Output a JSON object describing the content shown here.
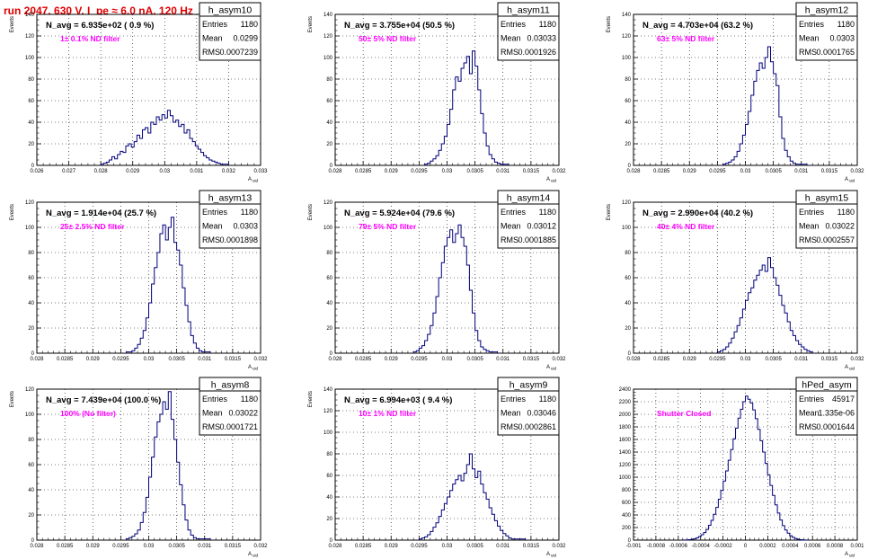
{
  "run_title": "run 2047,   630 V, I_pe ≈ 6.0 nA, 120 Hz",
  "colors": {
    "histogram": "#00007a",
    "annotation": "#ff00ff",
    "title": "#e00000",
    "frame": "#000000",
    "grid": "#000000"
  },
  "chart_data": [
    {
      "type": "histogram",
      "name": "h_asym10",
      "title": "",
      "xlabel": "A_uid",
      "ylabel": "Events",
      "xlim": [
        0.026,
        0.033
      ],
      "ylim": [
        0,
        140
      ],
      "xticks": [
        "0.026",
        "0.027",
        "0.028",
        "0.029",
        "0.03",
        "0.031",
        "0.032",
        "0.033"
      ],
      "yticks": [
        "0",
        "20",
        "40",
        "60",
        "80",
        "100",
        "120",
        "140"
      ],
      "grid": true,
      "navg_text": "N_avg = 6.935e+02 ( 0.9 %)",
      "filter_text": "1± 0.1% ND filter",
      "stats": {
        "entries": "1180",
        "mean": "0.0299",
        "rms": "0.0007239"
      },
      "hist": {
        "x0": 0.028,
        "x1": 0.032,
        "values": [
          1,
          2,
          3,
          5,
          8,
          6,
          10,
          13,
          12,
          18,
          20,
          17,
          22,
          28,
          25,
          33,
          35,
          30,
          40,
          38,
          45,
          42,
          47,
          44,
          51,
          46,
          40,
          42,
          36,
          38,
          30,
          33,
          25,
          22,
          18,
          15,
          12,
          9,
          7,
          5,
          4,
          3,
          2,
          1,
          1,
          1
        ]
      }
    },
    {
      "type": "histogram",
      "name": "h_asym11",
      "title": "",
      "xlabel": "A_uid",
      "ylabel": "Events",
      "xlim": [
        0.028,
        0.032
      ],
      "ylim": [
        0,
        140
      ],
      "xticks": [
        "0.028",
        "0.0285",
        "0.029",
        "0.0295",
        "0.03",
        "0.0305",
        "0.031",
        "0.0315",
        "0.032"
      ],
      "yticks": [
        "0",
        "20",
        "40",
        "60",
        "80",
        "100",
        "120",
        "140"
      ],
      "grid": true,
      "navg_text": "N_avg = 3.755e+04 (50.5 %)",
      "filter_text": "50± 5% ND filter",
      "stats": {
        "entries": "1180",
        "mean": "0.03033",
        "rms": "0.0001926"
      },
      "hist": {
        "x0": 0.0296,
        "x1": 0.0311,
        "values": [
          1,
          2,
          4,
          6,
          9,
          14,
          20,
          27,
          38,
          52,
          70,
          82,
          78,
          90,
          95,
          101,
          85,
          106,
          92,
          70,
          48,
          30,
          18,
          10,
          6,
          3,
          2,
          1,
          1,
          1
        ]
      }
    },
    {
      "type": "histogram",
      "name": "h_asym12",
      "title": "",
      "xlabel": "A_uid",
      "ylabel": "Events",
      "xlim": [
        0.028,
        0.032
      ],
      "ylim": [
        0,
        140
      ],
      "xticks": [
        "0.028",
        "0.0285",
        "0.029",
        "0.0295",
        "0.03",
        "0.0305",
        "0.031",
        "0.0315",
        "0.032"
      ],
      "yticks": [
        "0",
        "20",
        "40",
        "60",
        "80",
        "100",
        "120",
        "140"
      ],
      "grid": true,
      "navg_text": "N_avg = 4.703e+04 (63.2 %)",
      "filter_text": "63± 5% ND filter",
      "stats": {
        "entries": "1180",
        "mean": "0.0303",
        "rms": "0.0001765"
      },
      "hist": {
        "x0": 0.0296,
        "x1": 0.0311,
        "values": [
          1,
          2,
          3,
          5,
          8,
          13,
          20,
          28,
          38,
          50,
          65,
          78,
          88,
          95,
          90,
          100,
          110,
          96,
          85,
          74,
          45,
          25,
          14,
          8,
          4,
          2,
          1,
          1,
          1,
          1
        ]
      }
    },
    {
      "type": "histogram",
      "name": "h_asym13",
      "title": "",
      "xlabel": "A_uid",
      "ylabel": "Events",
      "xlim": [
        0.028,
        0.032
      ],
      "ylim": [
        0,
        120
      ],
      "xticks": [
        "0.028",
        "0.0285",
        "0.029",
        "0.0295",
        "0.03",
        "0.0305",
        "0.031",
        "0.0315",
        "0.032"
      ],
      "yticks": [
        "0",
        "20",
        "40",
        "60",
        "80",
        "100",
        "120"
      ],
      "grid": true,
      "navg_text": "N_avg = 1.914e+04 (25.7 %)",
      "filter_text": "25± 2.5% ND filter",
      "stats": {
        "entries": "1180",
        "mean": "0.0303",
        "rms": "0.0001898"
      },
      "hist": {
        "x0": 0.0296,
        "x1": 0.0311,
        "values": [
          1,
          1,
          2,
          4,
          7,
          12,
          18,
          28,
          40,
          55,
          68,
          80,
          95,
          102,
          90,
          100,
          108,
          88,
          82,
          70,
          52,
          38,
          25,
          14,
          8,
          4,
          2,
          1,
          1,
          1
        ]
      }
    },
    {
      "type": "histogram",
      "name": "h_asym14",
      "title": "",
      "xlabel": "A_uid",
      "ylabel": "Events",
      "xlim": [
        0.028,
        0.032
      ],
      "ylim": [
        0,
        120
      ],
      "xticks": [
        "0.028",
        "0.0285",
        "0.029",
        "0.0295",
        "0.03",
        "0.0305",
        "0.031",
        "0.0315",
        "0.032"
      ],
      "yticks": [
        "0",
        "20",
        "40",
        "60",
        "80",
        "100",
        "120"
      ],
      "grid": true,
      "navg_text": "N_avg = 5.924e+04 (79.6 %)",
      "filter_text": "79± 5% ND filter",
      "stats": {
        "entries": "1180",
        "mean": "0.03012",
        "rms": "0.0001885"
      },
      "hist": {
        "x0": 0.0294,
        "x1": 0.0309,
        "values": [
          1,
          2,
          4,
          6,
          10,
          15,
          22,
          32,
          45,
          60,
          72,
          85,
          92,
          98,
          88,
          95,
          102,
          92,
          85,
          70,
          50,
          32,
          18,
          10,
          5,
          3,
          2,
          1,
          1,
          1
        ]
      }
    },
    {
      "type": "histogram",
      "name": "h_asym15",
      "title": "",
      "xlabel": "A_uid",
      "ylabel": "Events",
      "xlim": [
        0.028,
        0.032
      ],
      "ylim": [
        0,
        120
      ],
      "xticks": [
        "0.028",
        "0.0285",
        "0.029",
        "0.0295",
        "0.03",
        "0.0305",
        "0.031",
        "0.0315",
        "0.032"
      ],
      "yticks": [
        "0",
        "20",
        "40",
        "60",
        "80",
        "100",
        "120"
      ],
      "grid": true,
      "navg_text": "N_avg = 2.990e+04 (40.2 %)",
      "filter_text": "40± 4% ND filter",
      "stats": {
        "entries": "1180",
        "mean": "0.03022",
        "rms": "0.0002557"
      },
      "hist": {
        "x0": 0.0295,
        "x1": 0.0312,
        "values": [
          1,
          2,
          3,
          5,
          8,
          12,
          17,
          22,
          28,
          35,
          42,
          48,
          52,
          58,
          62,
          66,
          70,
          65,
          76,
          68,
          60,
          54,
          46,
          38,
          32,
          25,
          18,
          14,
          10,
          7,
          5,
          3,
          2,
          1
        ]
      }
    },
    {
      "type": "histogram",
      "name": "h_asym8",
      "title": "",
      "xlabel": "A_uid",
      "ylabel": "Events",
      "xlim": [
        0.028,
        0.032
      ],
      "ylim": [
        0,
        120
      ],
      "xticks": [
        "0.028",
        "0.0285",
        "0.029",
        "0.0295",
        "0.03",
        "0.0305",
        "0.031",
        "0.0315",
        "0.032"
      ],
      "yticks": [
        "0",
        "20",
        "40",
        "60",
        "80",
        "100",
        "120"
      ],
      "grid": true,
      "navg_text": "N_avg = 7.439e+04 (100.0 %)",
      "filter_text": "100% (No filter)",
      "stats": {
        "entries": "1180",
        "mean": "0.03022",
        "rms": "0.0001721"
      },
      "hist": {
        "x0": 0.0296,
        "x1": 0.0311,
        "values": [
          1,
          2,
          3,
          5,
          8,
          14,
          22,
          34,
          50,
          66,
          82,
          94,
          100,
          110,
          104,
          118,
          96,
          80,
          62,
          44,
          28,
          16,
          8,
          4,
          2,
          1,
          1,
          1,
          1,
          1
        ]
      }
    },
    {
      "type": "histogram",
      "name": "h_asym9",
      "title": "",
      "xlabel": "A_uid",
      "ylabel": "Events",
      "xlim": [
        0.028,
        0.032
      ],
      "ylim": [
        0,
        140
      ],
      "xticks": [
        "0.028",
        "0.0285",
        "0.029",
        "0.0295",
        "0.03",
        "0.0305",
        "0.031",
        "0.0315",
        "0.032"
      ],
      "yticks": [
        "0",
        "20",
        "40",
        "60",
        "80",
        "100",
        "120",
        "140"
      ],
      "grid": true,
      "navg_text": "N_avg = 6.994e+03 ( 9.4 %)",
      "filter_text": "10± 1% ND filter",
      "stats": {
        "entries": "1180",
        "mean": "0.03046",
        "rms": "0.0002861"
      },
      "hist": {
        "x0": 0.0295,
        "x1": 0.0314,
        "values": [
          1,
          2,
          3,
          5,
          8,
          12,
          16,
          22,
          28,
          34,
          40,
          46,
          52,
          56,
          60,
          55,
          62,
          70,
          80,
          66,
          58,
          64,
          52,
          44,
          38,
          30,
          24,
          18,
          13,
          9,
          6,
          4,
          2,
          1,
          1,
          1,
          1,
          1
        ]
      }
    },
    {
      "type": "histogram",
      "name": "hPed_asym",
      "title": "",
      "xlabel": "A_uid",
      "ylabel": "",
      "xlim": [
        -0.001,
        0.001
      ],
      "ylim": [
        0,
        2400
      ],
      "xticks": [
        "-0.001",
        "-0.0008",
        "-0.0006",
        "-0.0004",
        "-0.0002",
        "0",
        "0.0002",
        "0.0004",
        "0.0006",
        "0.0008",
        "0.001"
      ],
      "yticks": [
        "0",
        "200",
        "400",
        "600",
        "800",
        "1000",
        "1200",
        "1400",
        "1600",
        "1800",
        "2000",
        "2200",
        "2400"
      ],
      "grid": true,
      "navg_text": "",
      "filter_text": "Shutter Closed",
      "stats": {
        "entries": "45917",
        "mean": "1.335e-06",
        "rms": "0.0001644"
      },
      "hist": {
        "x0": -0.00055,
        "x1": 0.00055,
        "values": [
          2,
          4,
          8,
          14,
          24,
          38,
          58,
          85,
          120,
          170,
          235,
          315,
          410,
          520,
          650,
          790,
          940,
          1100,
          1270,
          1440,
          1610,
          1780,
          1940,
          2080,
          2200,
          2290,
          2240,
          2180,
          2070,
          1930,
          1760,
          1580,
          1400,
          1220,
          1040,
          870,
          710,
          560,
          430,
          320,
          230,
          160,
          110,
          70,
          44,
          26,
          14,
          7,
          3,
          1
        ]
      }
    }
  ]
}
